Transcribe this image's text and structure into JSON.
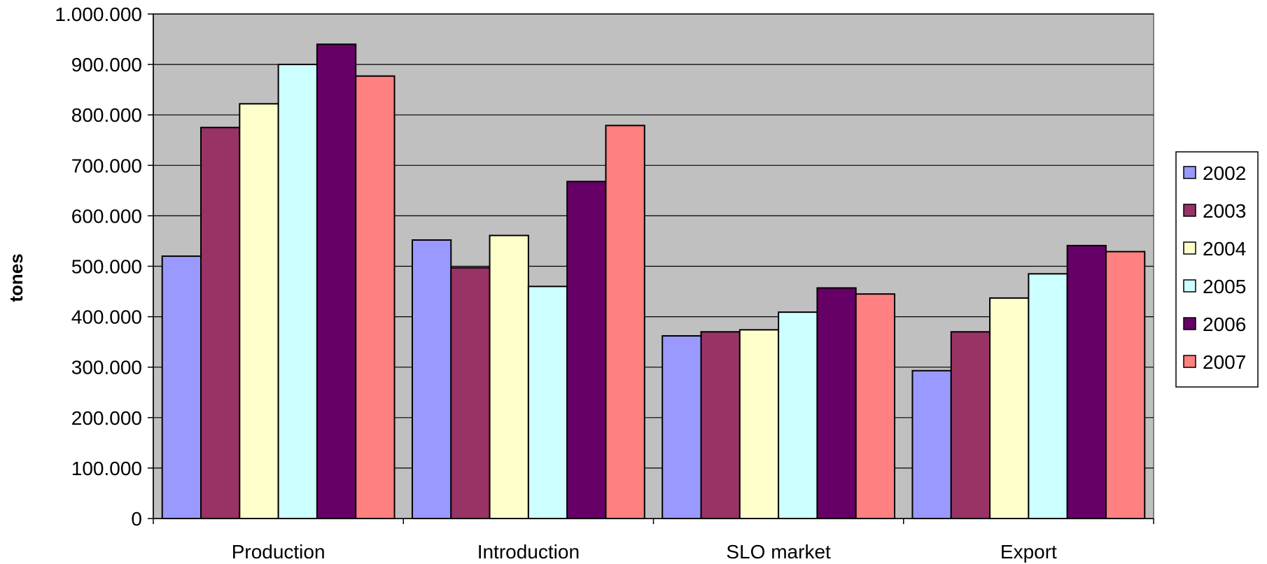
{
  "chart_data": {
    "type": "bar",
    "categories": [
      "Production",
      "Introduction",
      "SLO market",
      "Export"
    ],
    "series": [
      {
        "name": "2002",
        "color": "#9999FF",
        "values": [
          520000,
          552000,
          362000,
          293000
        ]
      },
      {
        "name": "2003",
        "color": "#993366",
        "values": [
          775000,
          497000,
          370000,
          370000
        ]
      },
      {
        "name": "2004",
        "color": "#FFFFCC",
        "values": [
          822000,
          561000,
          374000,
          437000
        ]
      },
      {
        "name": "2005",
        "color": "#CCFFFF",
        "values": [
          900000,
          460000,
          409000,
          485000
        ]
      },
      {
        "name": "2006",
        "color": "#660066",
        "values": [
          940000,
          668000,
          457000,
          541000
        ]
      },
      {
        "name": "2007",
        "color": "#FF8080",
        "values": [
          877000,
          779000,
          445000,
          529000
        ]
      }
    ],
    "ylabel": "tones",
    "ylim": [
      0,
      1000000
    ],
    "yticks": [
      0,
      100000,
      200000,
      300000,
      400000,
      500000,
      600000,
      700000,
      800000,
      900000,
      1000000
    ],
    "ytick_labels": [
      "0",
      "100.000",
      "200.000",
      "300.000",
      "400.000",
      "500.000",
      "600.000",
      "700.000",
      "800.000",
      "900.000",
      "1.000.000"
    ],
    "grid": true,
    "legend": "right",
    "plot_background": "#C0C0C0"
  }
}
